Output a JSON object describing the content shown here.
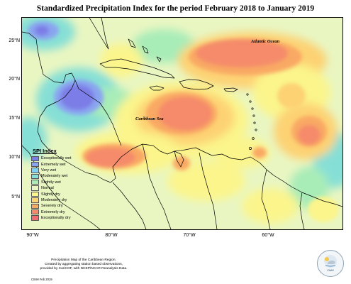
{
  "title": "Standardized Precipitation Index for the period February 2018 to January 2019",
  "map": {
    "lat_labels": [
      "25°N",
      "20°N",
      "15°N",
      "10°N",
      "5°N"
    ],
    "lon_labels": [
      "90°W",
      "80°W",
      "70°W",
      "60°W"
    ],
    "ocean_labels": {
      "atlantic": "Atlantic Ocean",
      "caribbean": "Caribbean Sea"
    }
  },
  "legend": {
    "title": "SPI Index",
    "items": [
      {
        "label": "Exceptionally wet",
        "color": "#7b7de6"
      },
      {
        "label": "Extremely wet",
        "color": "#8aa5f0"
      },
      {
        "label": "Very wet",
        "color": "#7fd0f2"
      },
      {
        "label": "Moderately wet",
        "color": "#86dfd6"
      },
      {
        "label": "Slightly wet",
        "color": "#a8ecb8"
      },
      {
        "label": "Normal",
        "color": "#e9f6c2"
      },
      {
        "label": "Slightly dry",
        "color": "#fbf58c"
      },
      {
        "label": "Moderately dry",
        "color": "#fdd273"
      },
      {
        "label": "Severely dry",
        "color": "#f9a964"
      },
      {
        "label": "Extremely dry",
        "color": "#f58b6b"
      },
      {
        "label": "Exceptionally dry",
        "color": "#ef6d70"
      }
    ]
  },
  "caption": {
    "lines": [
      "Precipitation Map of the Caribbean Region.",
      "Created by aggregating station based observations,",
      "provided by CariCOF, with NCEP/NCAR Reanalysis Data."
    ],
    "credit": "CIMH Feb 2019"
  },
  "logo": {
    "text": "CIMH"
  }
}
